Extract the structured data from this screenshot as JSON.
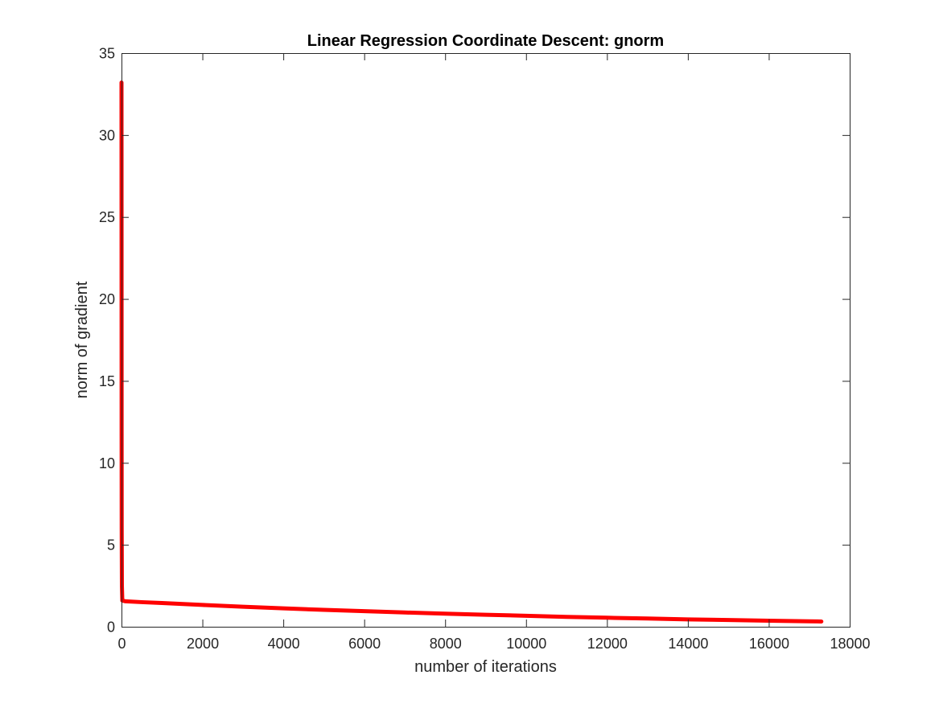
{
  "chart_data": {
    "type": "line",
    "title": "Linear Regression Coordinate Descent: gnorm",
    "xlabel": "number of iterations",
    "ylabel": "norm of gradient",
    "xlim": [
      0,
      18000
    ],
    "ylim": [
      0,
      35
    ],
    "xticks": [
      0,
      2000,
      4000,
      6000,
      8000,
      10000,
      12000,
      14000,
      16000,
      18000
    ],
    "yticks": [
      0,
      5,
      10,
      15,
      20,
      25,
      30,
      35
    ],
    "grid": false,
    "box": true,
    "series": [
      {
        "color": "#ff0000",
        "x": [
          0,
          1,
          2,
          3,
          5,
          10,
          20,
          100,
          500,
          1000,
          2000,
          3000,
          4000,
          5000,
          6000,
          7000,
          8000,
          9000,
          10000,
          11000,
          12000,
          13000,
          14000,
          15000,
          16000,
          17000,
          17300
        ],
        "values": [
          33.2,
          28.0,
          20.0,
          12.0,
          6.0,
          2.5,
          1.6,
          1.55,
          1.5,
          1.45,
          1.33,
          1.22,
          1.12,
          1.03,
          0.95,
          0.87,
          0.8,
          0.73,
          0.67,
          0.6,
          0.55,
          0.5,
          0.45,
          0.41,
          0.37,
          0.33,
          0.32
        ]
      }
    ]
  }
}
